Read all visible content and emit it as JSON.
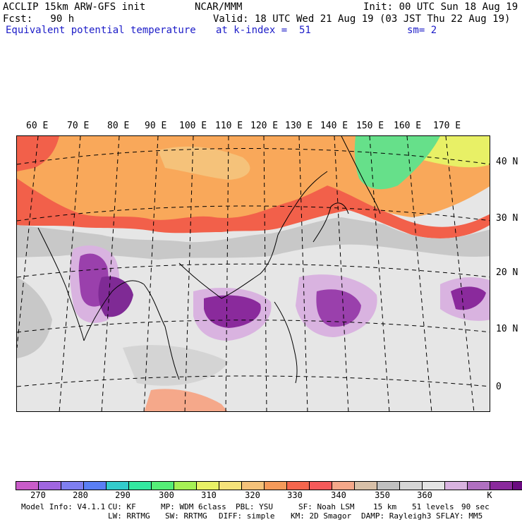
{
  "header": {
    "line1_left": "ACCLIP 15km ARW-GFS init",
    "line1_mid": "NCAR/MMM",
    "line1_right": "Init: 00 UTC Sun 18 Aug 19",
    "line2_left": "Fcst:   90 h",
    "line2_right": "Valid: 18 UTC Wed 21 Aug 19 (03 JST Thu 22 Aug 19)",
    "line3_left": "Equivalent potential temperature",
    "line3_mid": "at k-index =  51",
    "line3_right": "sm= 2"
  },
  "longitude_labels": [
    "60 E",
    "70 E",
    "80 E",
    "90 E",
    "100 E",
    "110 E",
    "120 E",
    "130 E",
    "140 E",
    "150 E",
    "160 E",
    "170 E"
  ],
  "latitude_labels": [
    "40 N",
    "30 N",
    "20 N",
    "10 N",
    "0"
  ],
  "colorbar": {
    "colors": [
      "#c95cc9",
      "#a066e0",
      "#7f7ff0",
      "#5a7ff5",
      "#33cccc",
      "#33e8a0",
      "#55ee77",
      "#a6f055",
      "#e8f066",
      "#f5e27a",
      "#f5c27a",
      "#f59a5a",
      "#f5664d",
      "#f55a5a",
      "#f5a88a",
      "#d8c0a8",
      "#c0c0c0",
      "#d6d6d6",
      "#e4e4e4",
      "#d9b3e0",
      "#b070c0",
      "#8a2a9c",
      "#6a0a80"
    ],
    "tick_labels": [
      "270",
      "280",
      "290",
      "300",
      "310",
      "320",
      "330",
      "340",
      "350",
      "360"
    ],
    "unit": "K"
  },
  "footer": {
    "line1": [
      "Model Info: V4.1.1",
      "CU: KF",
      "MP: WDM 6class",
      "PBL: YSU",
      "SF: Noah LSM",
      "15 km",
      "51 levels",
      "90 sec"
    ],
    "line2": [
      "LW: RRTMG",
      "SW: RRTMG",
      "DIFF: simple",
      "KM: 2D Smagor",
      "DAMP: Rayleigh3",
      "SFLAY: MM5"
    ]
  }
}
